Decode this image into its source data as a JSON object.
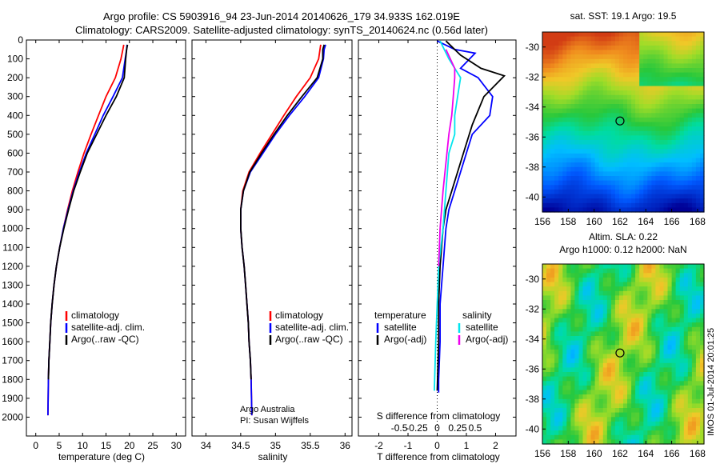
{
  "header": {
    "line1": "Argo profile: CS 5903916_94 23-Jun-2014 20140626_179 34.933S 162.019E",
    "line2": "Climatology: CARS2009. Satellite-adjusted climatology: synTS_20140624.nc (0.56d later)"
  },
  "colors": {
    "climatology": "#ff0000",
    "satellite": "#0000ff",
    "argo": "#000000",
    "satellite_salinity": "#00e5ee",
    "argo_adj_salinity": "#ee00ee"
  },
  "chart_data": [
    {
      "type": "line",
      "panel": "temperature",
      "xlabel": "temperature (deg C)",
      "ylabel": "",
      "xlim": [
        -2,
        32
      ],
      "ylim": [
        0,
        2100
      ],
      "y_inverted": true,
      "xticks": [
        0,
        5,
        10,
        15,
        20,
        25,
        30
      ],
      "yticks": [
        0,
        100,
        200,
        300,
        400,
        500,
        600,
        700,
        800,
        900,
        1000,
        1100,
        1200,
        1300,
        1400,
        1500,
        1600,
        1700,
        1800,
        1900,
        2000
      ],
      "legend": [
        "climatology",
        "satellite-adj. clim.",
        "Argo(..raw -QC)"
      ],
      "series": [
        {
          "name": "climatology",
          "color": "#ff0000",
          "x": [
            18.8,
            18.6,
            18.2,
            17.0,
            15.0,
            13.4,
            11.8,
            10.3,
            9.0,
            7.8,
            6.8,
            5.9,
            5.1,
            4.4,
            3.9,
            3.5,
            3.2,
            3.0,
            2.8,
            2.7,
            2.6
          ],
          "y": [
            25,
            50,
            100,
            200,
            300,
            400,
            500,
            600,
            700,
            800,
            900,
            1000,
            1100,
            1200,
            1300,
            1400,
            1500,
            1600,
            1700,
            1800,
            1990
          ]
        },
        {
          "name": "satellite-adj. clim.",
          "color": "#0000ff",
          "x": [
            19.5,
            19.4,
            19.1,
            18.5,
            16.5,
            14.4,
            12.6,
            10.8,
            9.3,
            8.0,
            6.9,
            5.9,
            5.1,
            4.4,
            3.9,
            3.5,
            3.2,
            3.0,
            2.8,
            2.7,
            2.6
          ],
          "y": [
            25,
            50,
            100,
            200,
            300,
            400,
            500,
            600,
            700,
            800,
            900,
            1000,
            1100,
            1200,
            1300,
            1400,
            1500,
            1600,
            1700,
            1800,
            1990
          ]
        },
        {
          "name": "Argo(..raw -QC)",
          "color": "#000000",
          "x": [
            19.6,
            19.4,
            19.2,
            18.9,
            17.2,
            15.0,
            13.0,
            11.0,
            9.5,
            8.1,
            7.0,
            6.0,
            5.1,
            4.4,
            3.9,
            3.5,
            3.2,
            3.0,
            2.8,
            2.7
          ],
          "y": [
            25,
            50,
            100,
            200,
            300,
            400,
            500,
            600,
            700,
            800,
            900,
            1000,
            1100,
            1200,
            1300,
            1400,
            1500,
            1600,
            1700,
            1800
          ]
        }
      ]
    },
    {
      "type": "line",
      "panel": "salinity",
      "xlabel": "salinity",
      "ylabel": "",
      "xlim": [
        33.8,
        36.1
      ],
      "ylim": [
        0,
        2100
      ],
      "y_inverted": true,
      "xticks": [
        34,
        34.5,
        35,
        35.5,
        36
      ],
      "legend": [
        "climatology",
        "satellite-adj. clim.",
        "Argo(..raw -QC)"
      ],
      "annotation": [
        "Argo Australia",
        "PI: Susan Wijffels"
      ],
      "series": [
        {
          "name": "climatology",
          "color": "#ff0000",
          "x": [
            35.65,
            35.64,
            35.62,
            35.5,
            35.3,
            35.12,
            34.95,
            34.78,
            34.62,
            34.53,
            34.5,
            34.5,
            34.52,
            34.55,
            34.57,
            34.59,
            34.61,
            34.62,
            34.64,
            34.65,
            34.66
          ],
          "y": [
            25,
            50,
            100,
            200,
            300,
            400,
            500,
            600,
            700,
            800,
            900,
            1000,
            1100,
            1200,
            1300,
            1400,
            1500,
            1600,
            1700,
            1800,
            1990
          ]
        },
        {
          "name": "satellite-adj. clim.",
          "color": "#0000ff",
          "x": [
            35.72,
            35.7,
            35.69,
            35.62,
            35.42,
            35.2,
            35.0,
            34.82,
            34.64,
            34.54,
            34.5,
            34.5,
            34.52,
            34.55,
            34.57,
            34.59,
            34.61,
            34.62,
            34.64,
            34.65,
            34.66
          ],
          "y": [
            25,
            50,
            100,
            200,
            300,
            400,
            500,
            600,
            700,
            800,
            900,
            1000,
            1100,
            1200,
            1300,
            1400,
            1500,
            1600,
            1700,
            1800,
            1990
          ]
        },
        {
          "name": "Argo(..raw -QC)",
          "color": "#000000",
          "x": [
            35.7,
            35.68,
            35.68,
            35.6,
            35.38,
            35.17,
            34.98,
            34.8,
            34.63,
            34.54,
            34.5,
            34.5,
            34.52,
            34.55,
            34.57,
            34.59,
            34.61,
            34.62,
            34.64,
            34.65
          ],
          "y": [
            25,
            50,
            100,
            200,
            300,
            400,
            500,
            600,
            700,
            800,
            900,
            1000,
            1100,
            1200,
            1300,
            1400,
            1500,
            1600,
            1700,
            1800
          ]
        }
      ]
    },
    {
      "type": "line",
      "panel": "difference",
      "title": "S difference from climatology",
      "xlabel": "T difference from climatology",
      "xlim": [
        -2.7,
        2.7
      ],
      "ylim": [
        0,
        2100
      ],
      "y_inverted": true,
      "xticks": [
        -2,
        -1,
        0,
        1,
        2
      ],
      "top_ticks": [
        "-0.5",
        "-0.25",
        "0",
        "0.25",
        "0.5"
      ],
      "legend_temperature": [
        "temperature",
        "satellite",
        "Argo(-adj)"
      ],
      "legend_salinity": [
        "salinity",
        "satellite",
        "Argo(-adj)"
      ],
      "series": [
        {
          "name": "satellite",
          "color": "#0000ff",
          "x": [
            0.0,
            0.6,
            1.3,
            0.8,
            1.4,
            1.9,
            1.8,
            1.2,
            1.0,
            0.8,
            0.6,
            0.4,
            0.3,
            0.2,
            0.1,
            0.1,
            0.05,
            0.05
          ],
          "y": [
            5,
            50,
            70,
            150,
            200,
            300,
            400,
            500,
            600,
            700,
            800,
            900,
            1000,
            1200,
            1400,
            1600,
            1800,
            1870
          ]
        },
        {
          "name": "Argo(-adj)",
          "color": "#000000",
          "x": [
            0.3,
            0.8,
            1.5,
            2.3,
            1.6,
            1.2,
            0.9,
            0.7,
            0.5,
            0.3,
            0.2,
            0.1,
            0.05,
            0.05,
            0.0
          ],
          "y": [
            5,
            80,
            150,
            190,
            300,
            450,
            600,
            700,
            800,
            900,
            1000,
            1200,
            1400,
            1600,
            1860
          ]
        },
        {
          "name": "satellite",
          "color": "#00e5ee",
          "x": [
            0.1,
            0.4,
            0.8,
            0.7,
            0.6,
            0.6,
            0.4,
            0.3,
            0.2,
            0.05,
            0.0,
            -0.05,
            -0.1
          ],
          "y": [
            5,
            100,
            200,
            300,
            400,
            500,
            600,
            800,
            1000,
            1200,
            1400,
            1600,
            1860
          ]
        },
        {
          "name": "Argo(-adj)",
          "color": "#ee00ee",
          "x": [
            0.3,
            0.6,
            0.6,
            0.55,
            0.5,
            0.4,
            0.2,
            0.1,
            0.05
          ],
          "y": [
            50,
            150,
            200,
            300,
            400,
            500,
            800,
            1000,
            1200
          ]
        }
      ]
    },
    {
      "type": "heatmap",
      "panel": "sst_map",
      "title": "sat. SST: 19.1 Argo: 19.5",
      "xlim": [
        156,
        168.5
      ],
      "ylim": [
        -41,
        -29
      ],
      "xticks": [
        156,
        158,
        160,
        162,
        164,
        166,
        168
      ],
      "yticks": [
        -30,
        -32,
        -34,
        -36,
        -38,
        -40
      ],
      "marker": {
        "lon": 162.0,
        "lat": -34.93
      }
    },
    {
      "type": "heatmap",
      "panel": "sla_map",
      "title": [
        "Altim. SLA: 0.22",
        "Argo h1000: 0.12 h2000: NaN"
      ],
      "xlim": [
        156,
        168.5
      ],
      "ylim": [
        -41,
        -29
      ],
      "xticks": [
        156,
        158,
        160,
        162,
        164,
        166,
        168
      ],
      "yticks": [
        -30,
        -32,
        -34,
        -36,
        -38,
        -40
      ],
      "marker": {
        "lon": 162.0,
        "lat": -34.93
      },
      "side_label": "IMOS 01-Jul-2014 20:01:25"
    }
  ]
}
